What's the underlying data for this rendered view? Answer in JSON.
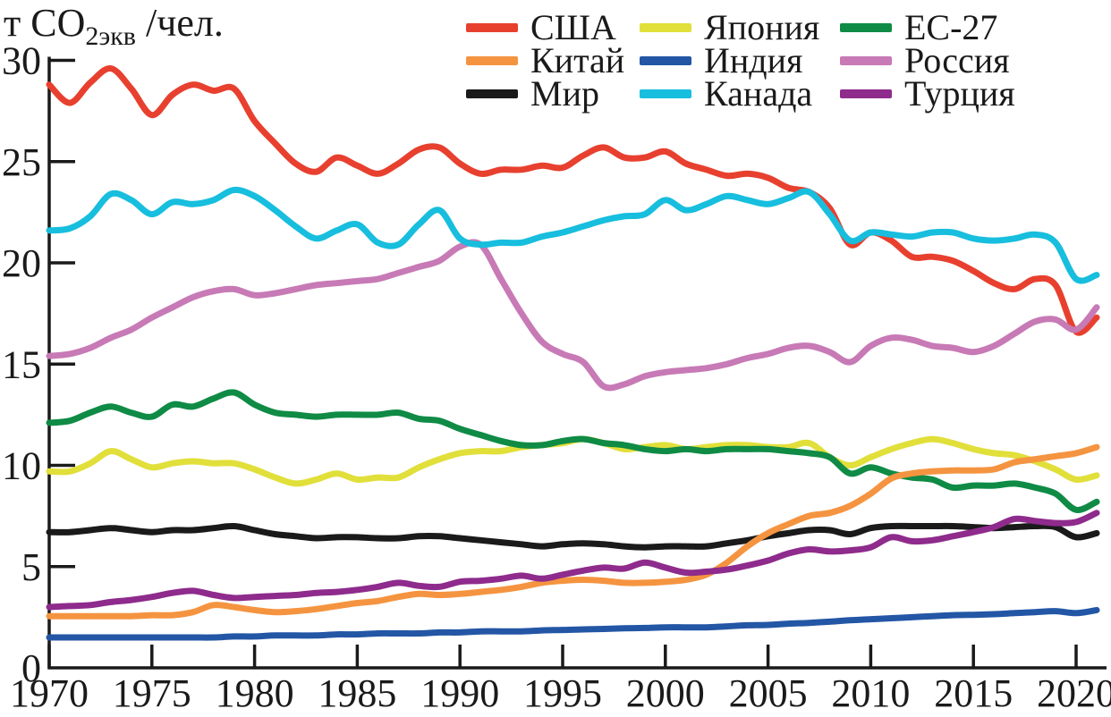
{
  "title": {
    "prefix": "т CO",
    "sub": "2экв",
    "suffix": " /чел."
  },
  "legend": {
    "columns": [
      [
        "США",
        "Китай",
        "Мир"
      ],
      [
        "Япония",
        "Индия",
        "Канада"
      ],
      [
        "ЕС-27",
        "Россия",
        "Турция"
      ]
    ]
  },
  "chart_data": {
    "type": "line",
    "title": "",
    "ylabel": "т CO2экв /чел.",
    "xlabel": "",
    "grid": false,
    "legend_position": "top-right",
    "xlim": [
      1970,
      2021
    ],
    "ylim": [
      0,
      30
    ],
    "x_ticks": [
      1970,
      1975,
      1980,
      1985,
      1990,
      1995,
      2000,
      2005,
      2010,
      2015,
      2020
    ],
    "y_ticks": [
      0,
      5,
      10,
      15,
      20,
      25,
      30
    ],
    "x": [
      1970,
      1971,
      1972,
      1973,
      1974,
      1975,
      1976,
      1977,
      1978,
      1979,
      1980,
      1981,
      1982,
      1983,
      1984,
      1985,
      1986,
      1987,
      1988,
      1989,
      1990,
      1991,
      1992,
      1993,
      1994,
      1995,
      1996,
      1997,
      1998,
      1999,
      2000,
      2001,
      2002,
      2003,
      2004,
      2005,
      2006,
      2007,
      2008,
      2009,
      2010,
      2011,
      2012,
      2013,
      2014,
      2015,
      2016,
      2017,
      2018,
      2019,
      2020,
      2021
    ],
    "series": [
      {
        "id": "india",
        "name": "Индия",
        "color": "#2356a5",
        "values": [
          1.5,
          1.5,
          1.5,
          1.5,
          1.5,
          1.5,
          1.5,
          1.5,
          1.5,
          1.55,
          1.55,
          1.6,
          1.6,
          1.6,
          1.65,
          1.65,
          1.7,
          1.7,
          1.7,
          1.75,
          1.75,
          1.8,
          1.8,
          1.8,
          1.85,
          1.87,
          1.9,
          1.92,
          1.95,
          1.97,
          2.0,
          2.0,
          2.0,
          2.05,
          2.1,
          2.12,
          2.18,
          2.22,
          2.28,
          2.35,
          2.4,
          2.45,
          2.5,
          2.55,
          2.6,
          2.62,
          2.65,
          2.7,
          2.75,
          2.8,
          2.7,
          2.85
        ]
      },
      {
        "id": "world",
        "name": "Мир",
        "color": "#1a1a1a",
        "values": [
          6.7,
          6.7,
          6.8,
          6.9,
          6.8,
          6.7,
          6.8,
          6.8,
          6.9,
          7.0,
          6.8,
          6.6,
          6.5,
          6.4,
          6.45,
          6.45,
          6.4,
          6.4,
          6.5,
          6.5,
          6.4,
          6.3,
          6.2,
          6.1,
          6.0,
          6.1,
          6.15,
          6.1,
          6.0,
          5.95,
          6.0,
          6.0,
          6.0,
          6.15,
          6.3,
          6.5,
          6.65,
          6.8,
          6.8,
          6.6,
          6.9,
          7.0,
          7.0,
          7.0,
          7.0,
          6.95,
          6.9,
          6.95,
          7.0,
          6.95,
          6.45,
          6.65
        ]
      },
      {
        "id": "japan",
        "name": "Япония",
        "color": "#e1df3a",
        "values": [
          9.7,
          9.7,
          10.1,
          10.7,
          10.3,
          9.9,
          10.1,
          10.2,
          10.1,
          10.1,
          9.8,
          9.4,
          9.1,
          9.3,
          9.6,
          9.3,
          9.4,
          9.4,
          9.9,
          10.3,
          10.6,
          10.7,
          10.7,
          10.9,
          11.0,
          11.1,
          11.3,
          11.1,
          10.8,
          10.9,
          11.0,
          10.8,
          10.9,
          11.0,
          11.0,
          10.9,
          10.9,
          11.1,
          10.4,
          10.0,
          10.4,
          10.8,
          11.1,
          11.3,
          11.1,
          10.8,
          10.6,
          10.5,
          10.2,
          9.8,
          9.3,
          9.5
        ]
      },
      {
        "id": "eu27",
        "name": "ЕС-27",
        "color": "#0f8b45",
        "values": [
          12.1,
          12.2,
          12.6,
          12.9,
          12.6,
          12.4,
          13.0,
          12.9,
          13.3,
          13.6,
          13.0,
          12.6,
          12.5,
          12.4,
          12.5,
          12.5,
          12.5,
          12.6,
          12.3,
          12.2,
          11.8,
          11.5,
          11.2,
          11.0,
          11.0,
          11.2,
          11.3,
          11.1,
          11.0,
          10.8,
          10.7,
          10.8,
          10.7,
          10.8,
          10.8,
          10.8,
          10.7,
          10.6,
          10.4,
          9.6,
          9.9,
          9.6,
          9.4,
          9.3,
          8.9,
          9.0,
          9.0,
          9.1,
          8.9,
          8.6,
          7.8,
          8.2
        ]
      },
      {
        "id": "china",
        "name": "Китай",
        "color": "#f59440",
        "values": [
          2.55,
          2.55,
          2.55,
          2.55,
          2.55,
          2.6,
          2.6,
          2.75,
          3.1,
          3.0,
          2.85,
          2.75,
          2.8,
          2.9,
          3.05,
          3.2,
          3.3,
          3.5,
          3.65,
          3.6,
          3.65,
          3.75,
          3.85,
          4.0,
          4.2,
          4.3,
          4.35,
          4.3,
          4.2,
          4.2,
          4.25,
          4.35,
          4.6,
          5.2,
          6.0,
          6.65,
          7.1,
          7.5,
          7.65,
          8.0,
          8.6,
          9.35,
          9.6,
          9.7,
          9.75,
          9.75,
          9.8,
          10.15,
          10.3,
          10.45,
          10.6,
          10.9
        ]
      },
      {
        "id": "turkey",
        "name": "Турция",
        "color": "#8e2b8c",
        "values": [
          3.0,
          3.05,
          3.1,
          3.25,
          3.35,
          3.5,
          3.7,
          3.8,
          3.6,
          3.45,
          3.5,
          3.55,
          3.6,
          3.7,
          3.75,
          3.85,
          4.0,
          4.2,
          4.05,
          4.0,
          4.25,
          4.3,
          4.4,
          4.55,
          4.4,
          4.6,
          4.8,
          4.95,
          4.9,
          5.2,
          4.95,
          4.7,
          4.75,
          4.85,
          5.05,
          5.3,
          5.65,
          5.85,
          5.75,
          5.8,
          5.95,
          6.45,
          6.25,
          6.3,
          6.5,
          6.7,
          6.95,
          7.35,
          7.25,
          7.15,
          7.2,
          7.65
        ]
      },
      {
        "id": "usa",
        "name": "США",
        "color": "#e8402f",
        "values": [
          28.8,
          27.9,
          28.9,
          29.6,
          28.6,
          27.3,
          28.3,
          28.8,
          28.5,
          28.6,
          27.0,
          25.9,
          24.9,
          24.5,
          25.2,
          24.8,
          24.4,
          24.9,
          25.6,
          25.7,
          24.9,
          24.4,
          24.6,
          24.6,
          24.8,
          24.7,
          25.3,
          25.7,
          25.2,
          25.2,
          25.5,
          24.9,
          24.6,
          24.3,
          24.4,
          24.2,
          23.7,
          23.5,
          22.7,
          20.9,
          21.5,
          21.1,
          20.3,
          20.3,
          20.1,
          19.6,
          19.0,
          18.7,
          19.2,
          18.9,
          16.6,
          17.3
        ]
      },
      {
        "id": "russia",
        "name": "Россия",
        "color": "#c77ab5",
        "values": [
          15.4,
          15.5,
          15.8,
          16.3,
          16.7,
          17.3,
          17.8,
          18.3,
          18.6,
          18.7,
          18.4,
          18.5,
          18.7,
          18.9,
          19.0,
          19.1,
          19.2,
          19.5,
          19.8,
          20.1,
          20.8,
          20.9,
          19.2,
          17.5,
          16.1,
          15.5,
          15.1,
          13.9,
          14.0,
          14.4,
          14.6,
          14.7,
          14.8,
          15.0,
          15.3,
          15.5,
          15.8,
          15.9,
          15.6,
          15.1,
          15.9,
          16.3,
          16.2,
          15.9,
          15.8,
          15.6,
          15.9,
          16.5,
          17.1,
          17.2,
          16.7,
          17.8
        ]
      },
      {
        "id": "canada",
        "name": "Канада",
        "color": "#17bede",
        "values": [
          21.6,
          21.7,
          22.3,
          23.4,
          23.1,
          22.4,
          23.0,
          22.9,
          23.1,
          23.6,
          23.3,
          22.6,
          21.8,
          21.2,
          21.6,
          21.9,
          21.0,
          20.9,
          21.9,
          22.6,
          21.2,
          20.9,
          21.0,
          21.0,
          21.3,
          21.5,
          21.8,
          22.1,
          22.3,
          22.4,
          23.1,
          22.6,
          22.9,
          23.3,
          23.1,
          22.9,
          23.2,
          23.5,
          22.4,
          21.1,
          21.5,
          21.4,
          21.3,
          21.5,
          21.5,
          21.2,
          21.1,
          21.2,
          21.4,
          21.0,
          19.2,
          19.4
        ]
      }
    ]
  }
}
